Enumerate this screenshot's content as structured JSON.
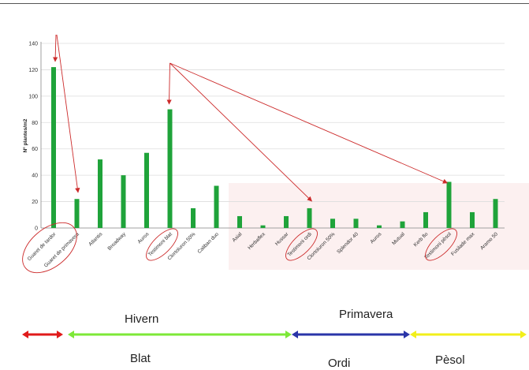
{
  "chart_data": {
    "type": "bar",
    "ylabel": "Nº plantes/m2",
    "xlabel": "",
    "ylim": [
      0,
      140
    ],
    "yticks": [
      0,
      20,
      40,
      60,
      80,
      100,
      120,
      140
    ],
    "grid": true,
    "bar_color": "#1fa33a",
    "annotation_color": "#cc2a2a",
    "categories": [
      "Guaret de tardor",
      "Guaret de primavera",
      "Atlantis",
      "Broadway",
      "Auros",
      "Testimoni blat",
      "Clortoluron 50%",
      "Caliban duo",
      "Axial",
      "Herbaflex",
      "Hussar",
      "Testimoni ordi",
      "Clortoluron 50%",
      "Splendor 40",
      "Auros",
      "Mutual",
      "Kerb flo",
      "Testimoni pèsol",
      "Fusilade max",
      "Aramo 50"
    ],
    "values": [
      122,
      22,
      52,
      40,
      57,
      90,
      15,
      32,
      9,
      2,
      9,
      15,
      7,
      7,
      2,
      5,
      12,
      35,
      12,
      22
    ],
    "circled": [
      "Guaret de tardor",
      "Guaret de primavera",
      "Testimoni blat",
      "Testimoni ordi",
      "Testimoni pèsol"
    ]
  },
  "timeline": {
    "seasons": [
      {
        "name": "Hivern",
        "color": "#7de838"
      },
      {
        "name": "Primavera",
        "color": "#2a35a8"
      }
    ],
    "crops": [
      {
        "name": "Blat",
        "color": "#7de838"
      },
      {
        "name": "Ordi",
        "color": "#2a35a8"
      },
      {
        "name": "Pèsol",
        "color": "#f2ef1a"
      }
    ],
    "lead_color": "#e01a1a"
  }
}
